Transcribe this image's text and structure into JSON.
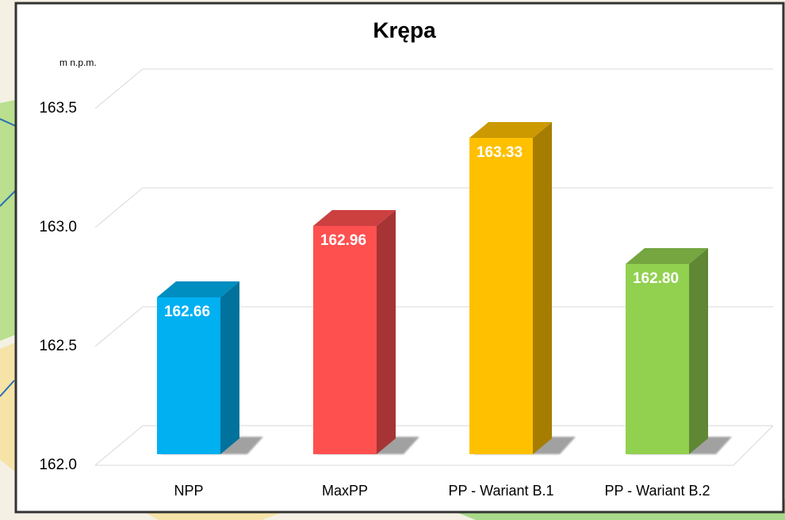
{
  "chart_data": {
    "type": "bar",
    "title": "Krępa",
    "y_axis_label": "m n.p.m.",
    "categories": [
      "NPP",
      "MaxPP",
      "PP - Wariant B.1",
      "PP - Wariant B.2"
    ],
    "values": [
      162.66,
      162.96,
      163.33,
      162.8
    ],
    "value_labels": [
      "162.66",
      "162.96",
      "163.33",
      "162.80"
    ],
    "colors": [
      "#00b0f0",
      "#ff5050",
      "#ffc000",
      "#92d050"
    ],
    "ylim": [
      162.0,
      163.5
    ],
    "yticks": [
      {
        "value": 162.0,
        "label": "162.0"
      },
      162.5,
      {
        "value": 163.0,
        "label": "163.0"
      },
      163.5
    ],
    "grid": true
  }
}
